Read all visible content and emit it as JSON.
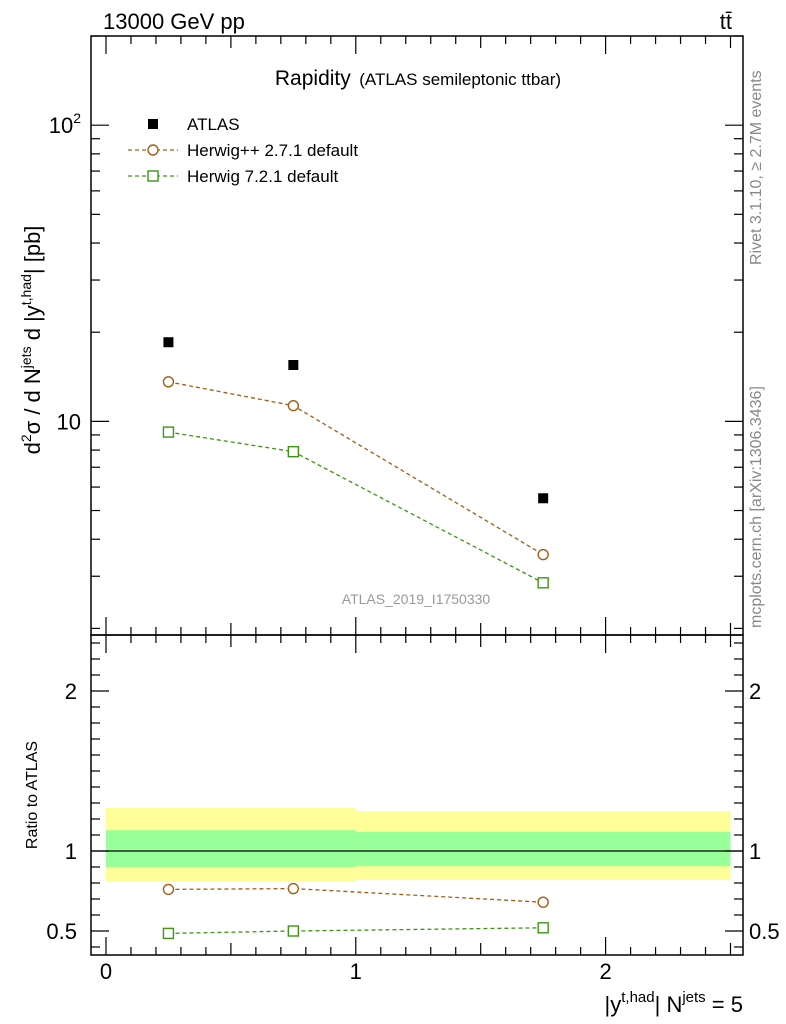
{
  "header": {
    "process": "13000 GeV pp",
    "final_state": "tt̄"
  },
  "side_labels": {
    "rivet": "Rivet 3.1.10, ≥ 2.7M events",
    "source": "mcplots.cern.ch [arXiv:1306.3436]"
  },
  "analysis_id": "ATLAS_2019_I1750330",
  "colors": {
    "atlas": "#000000",
    "herwigpp": "#a65c12",
    "herwig7": "#3c9614",
    "band_inner": "#99ff99",
    "band_outer": "#ffff99"
  },
  "chart_data": [
    {
      "type": "scatter",
      "title": "Rapidity",
      "subtitle": "(ATLAS semileptonic ttbar)",
      "ylabel": "d²σ / d N^jets d |y^t,had| [pb]",
      "yscale": "log",
      "ylim": [
        1.9,
        200
      ],
      "xlim": [
        -0.06,
        2.55
      ],
      "ytick_labels": [
        "10",
        "10²"
      ],
      "legend_placement": "top-left",
      "series": [
        {
          "name": "ATLAS",
          "x": [
            0.25,
            0.75,
            1.75
          ],
          "y": [
            18.5,
            15.5,
            5.5
          ],
          "marker": "filled-square",
          "color": "#000000"
        },
        {
          "name": "Herwig++ 2.7.1 default",
          "x": [
            0.25,
            0.75,
            1.75
          ],
          "y": [
            13.6,
            11.3,
            3.55
          ],
          "marker": "open-circle",
          "color": "#a65c12",
          "line": "dashed"
        },
        {
          "name": "Herwig 7.2.1 default",
          "x": [
            0.25,
            0.75,
            1.75
          ],
          "y": [
            9.2,
            7.9,
            2.85
          ],
          "marker": "open-square",
          "color": "#3c9614",
          "line": "dashed"
        }
      ]
    },
    {
      "type": "line",
      "ylabel": "Ratio to ATLAS",
      "xlabel": "|y^t,had| N^jets = 5",
      "ylim": [
        0.35,
        2.35
      ],
      "xlim": [
        -0.06,
        2.55
      ],
      "xticks": [
        0,
        1,
        2
      ],
      "yticks": [
        0.5,
        1,
        2
      ],
      "reference_line": 1,
      "bands": [
        {
          "x_edges": [
            0,
            1,
            2.5
          ],
          "inner_low": [
            0.9,
            0.905
          ],
          "inner_high": [
            1.13,
            1.12
          ],
          "outer_low": [
            0.81,
            0.82
          ],
          "outer_high": [
            1.27,
            1.25
          ]
        }
      ],
      "series": [
        {
          "name": "Herwig++ 2.7.1 default",
          "x": [
            0.25,
            0.75,
            1.75
          ],
          "y": [
            0.76,
            0.765,
            0.68
          ],
          "color": "#a65c12",
          "marker": "open-circle"
        },
        {
          "name": "Herwig 7.2.1 default",
          "x": [
            0.25,
            0.75,
            1.75
          ],
          "y": [
            0.485,
            0.5,
            0.52
          ],
          "color": "#3c9614",
          "marker": "open-square"
        }
      ]
    }
  ]
}
